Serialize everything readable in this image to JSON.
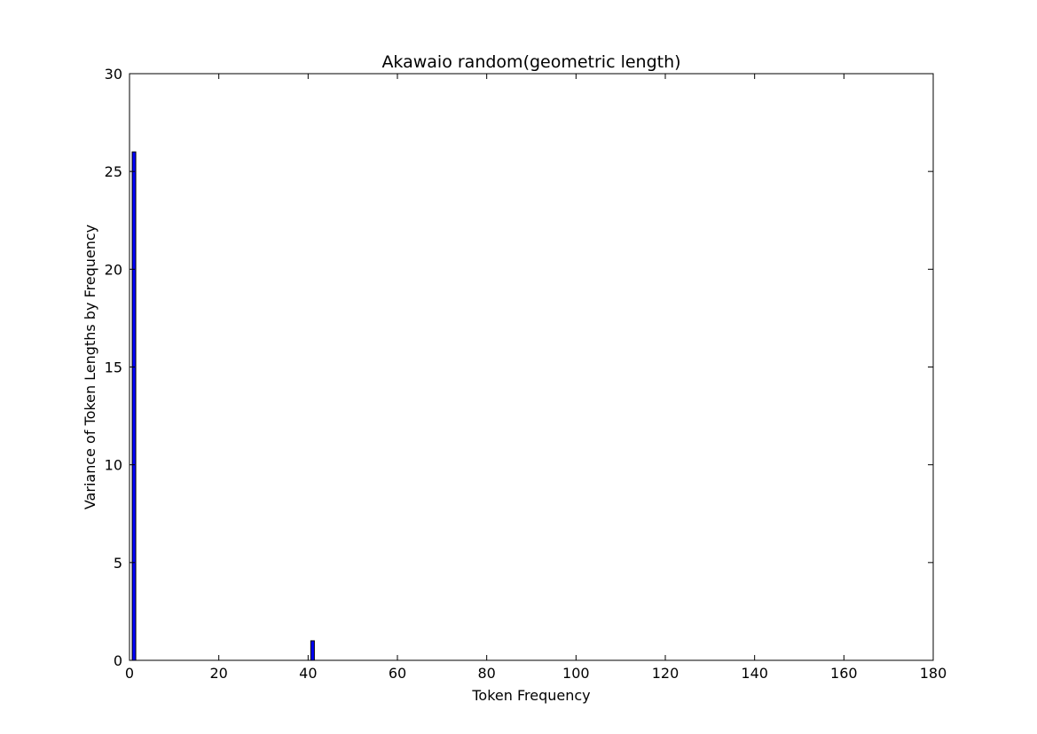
{
  "chart_data": {
    "type": "bar",
    "title": "Akawaio random(geometric length)",
    "xlabel": "Token Frequency",
    "ylabel": "Variance of Token Lengths by Frequency",
    "xlim": [
      0,
      180
    ],
    "ylim": [
      0,
      30
    ],
    "xticks": [
      "0",
      "20",
      "40",
      "60",
      "80",
      "100",
      "120",
      "140",
      "160",
      "180"
    ],
    "yticks": [
      "0",
      "5",
      "10",
      "15",
      "20",
      "25",
      "30"
    ],
    "grid": false,
    "bar_color": "#0000ff",
    "bar_edge_color": "#000000",
    "bar_width": 0.8,
    "x": [
      1,
      41
    ],
    "values": [
      26,
      1
    ]
  }
}
